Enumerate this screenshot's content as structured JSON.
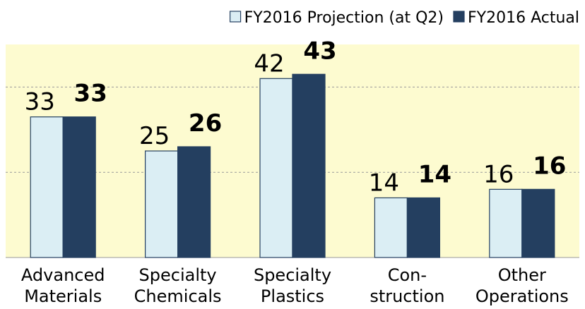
{
  "chart_data": {
    "type": "bar",
    "categories": [
      [
        "Advanced",
        "Materials"
      ],
      [
        "Specialty",
        "Chemicals"
      ],
      [
        "Specialty",
        "Plastics"
      ],
      [
        "Con-",
        "struction"
      ],
      [
        "Other",
        "Operations"
      ]
    ],
    "series": [
      {
        "name": "FY2016 Projection (at Q2)",
        "color": "#dbeef4",
        "values": [
          33,
          25,
          42,
          14,
          16
        ]
      },
      {
        "name": "FY2016 Actual",
        "color": "#243f60",
        "values": [
          33,
          26,
          43,
          14,
          16
        ]
      }
    ],
    "ylim": [
      0,
      50
    ],
    "yticks": [
      0,
      20,
      40
    ],
    "grid": true,
    "legend": "top-right"
  }
}
